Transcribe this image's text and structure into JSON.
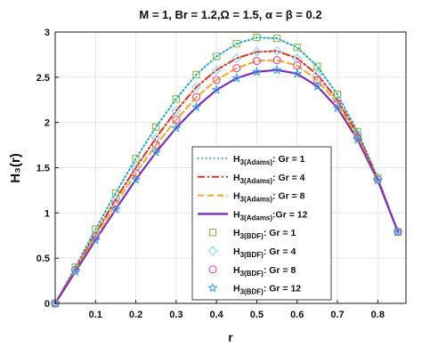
{
  "chart_data": {
    "type": "line",
    "title": "M = 1, Br = 1.2,Ω = 1.5, α = β = 0.2",
    "xlabel": "r",
    "ylabel": "H₃(r)",
    "xlim": [
      0,
      0.87
    ],
    "ylim": [
      0,
      3
    ],
    "x_ticks": [
      0.1,
      0.2,
      0.3,
      0.4,
      0.5,
      0.6,
      0.7,
      0.8
    ],
    "y_ticks": [
      0,
      0.5,
      1,
      1.5,
      2,
      2.5,
      3
    ],
    "legend_placement": "bottom-right",
    "x": [
      0,
      0.05,
      0.1,
      0.15,
      0.2,
      0.25,
      0.3,
      0.35,
      0.4,
      0.45,
      0.5,
      0.55,
      0.6,
      0.65,
      0.7,
      0.75,
      0.8,
      0.85
    ],
    "series": [
      {
        "name": "Adams Gr = 1",
        "legend_base": "H",
        "legend_sub": "3(Adams)",
        "legend_tail": ": Gr = 1",
        "kind": "line",
        "dash": "dotted",
        "color": "#1ea8c8",
        "values": [
          0,
          0.4,
          0.82,
          1.22,
          1.6,
          1.95,
          2.26,
          2.53,
          2.73,
          2.87,
          2.94,
          2.93,
          2.83,
          2.62,
          2.31,
          1.9,
          1.39,
          0.79
        ]
      },
      {
        "name": "Adams Gr = 4",
        "legend_base": "H",
        "legend_sub": "3(Adams)",
        "legend_tail": ": Gr = 4",
        "kind": "line",
        "dash": "dashdot",
        "color": "#e0301e",
        "values": [
          0,
          0.38,
          0.77,
          1.15,
          1.5,
          1.83,
          2.13,
          2.39,
          2.58,
          2.71,
          2.78,
          2.79,
          2.71,
          2.53,
          2.25,
          1.87,
          1.38,
          0.79
        ]
      },
      {
        "name": "Adams Gr = 8",
        "legend_base": "H",
        "legend_sub": "3(Adams)",
        "legend_tail": ": Gr = 8",
        "kind": "line",
        "dash": "dashed",
        "color": "#f5a623",
        "values": [
          0,
          0.37,
          0.74,
          1.1,
          1.44,
          1.75,
          2.03,
          2.28,
          2.47,
          2.6,
          2.68,
          2.69,
          2.63,
          2.47,
          2.21,
          1.84,
          1.37,
          0.79
        ]
      },
      {
        "name": "Adams Gr = 12",
        "legend_base": "H",
        "legend_sub": "3(Adams)",
        "legend_tail": ":Gr = 12",
        "kind": "line",
        "dash": "solid",
        "color": "#7b2fbe",
        "values": [
          0,
          0.35,
          0.7,
          1.04,
          1.37,
          1.67,
          1.94,
          2.17,
          2.36,
          2.49,
          2.56,
          2.58,
          2.54,
          2.4,
          2.16,
          1.81,
          1.36,
          0.79
        ]
      },
      {
        "name": "BDF Gr = 1",
        "legend_base": "H",
        "legend_sub": "3(BDF)",
        "legend_tail": ": Gr = 1",
        "kind": "marker",
        "marker": "square",
        "color": "#7fc241",
        "values": [
          0,
          0.4,
          0.82,
          1.22,
          1.6,
          1.95,
          2.26,
          2.53,
          2.73,
          2.87,
          2.94,
          2.93,
          2.83,
          2.62,
          2.31,
          1.9,
          1.39,
          0.79
        ]
      },
      {
        "name": "BDF Gr = 4",
        "legend_base": "H",
        "legend_sub": "3(BDF)",
        "legend_tail": ": Gr = 4",
        "kind": "marker",
        "marker": "diamond",
        "color": "#7fd8ee",
        "values": [
          0,
          0.38,
          0.77,
          1.15,
          1.5,
          1.83,
          2.13,
          2.39,
          2.58,
          2.71,
          2.78,
          2.79,
          2.71,
          2.53,
          2.25,
          1.87,
          1.38,
          0.79
        ]
      },
      {
        "name": "BDF Gr = 8",
        "legend_base": "H",
        "legend_sub": "3(BDF)",
        "legend_tail": ": Gr = 8",
        "kind": "marker",
        "marker": "circle",
        "color": "#e8459a",
        "values": [
          0,
          0.37,
          0.74,
          1.1,
          1.44,
          1.75,
          2.03,
          2.28,
          2.47,
          2.6,
          2.68,
          2.69,
          2.63,
          2.47,
          2.21,
          1.84,
          1.37,
          0.79
        ]
      },
      {
        "name": "BDF Gr = 12",
        "legend_base": "H",
        "legend_sub": "3(BDF)",
        "legend_tail": ": Gr = 12",
        "kind": "marker",
        "marker": "star",
        "color": "#2aa4e0",
        "values": [
          0,
          0.35,
          0.7,
          1.04,
          1.37,
          1.67,
          1.94,
          2.17,
          2.36,
          2.49,
          2.56,
          2.58,
          2.54,
          2.4,
          2.16,
          1.81,
          1.36,
          0.79
        ]
      }
    ]
  }
}
